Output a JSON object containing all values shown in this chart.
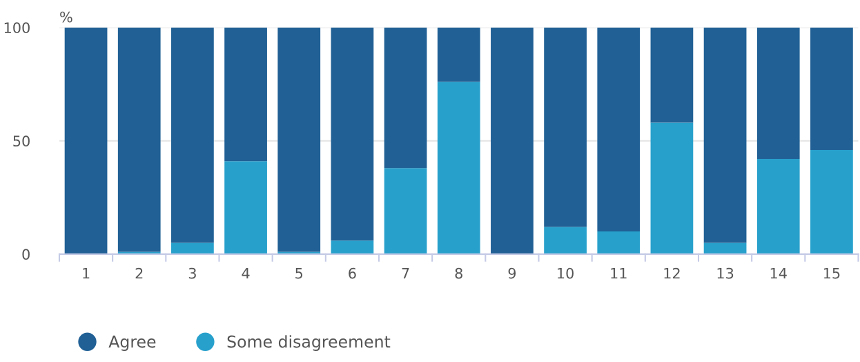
{
  "chart_data": {
    "type": "bar",
    "stacked": true,
    "ylabel": "%",
    "categories": [
      "1",
      "2",
      "3",
      "4",
      "5",
      "6",
      "7",
      "8",
      "9",
      "10",
      "11",
      "12",
      "13",
      "14",
      "15"
    ],
    "series": [
      {
        "name": "Some disagreement",
        "color": "#27a0cc",
        "values": [
          0,
          1,
          5,
          41,
          1,
          6,
          38,
          76,
          0,
          12,
          10,
          58,
          5,
          42,
          46
        ]
      },
      {
        "name": "Agree",
        "color": "#206095",
        "values": [
          100,
          99,
          95,
          59,
          99,
          94,
          62,
          24,
          100,
          88,
          90,
          42,
          95,
          58,
          54
        ]
      }
    ],
    "ylim": [
      0,
      100
    ],
    "yticks": [
      0,
      50,
      100
    ],
    "grid": "y",
    "legend": "bottom"
  }
}
